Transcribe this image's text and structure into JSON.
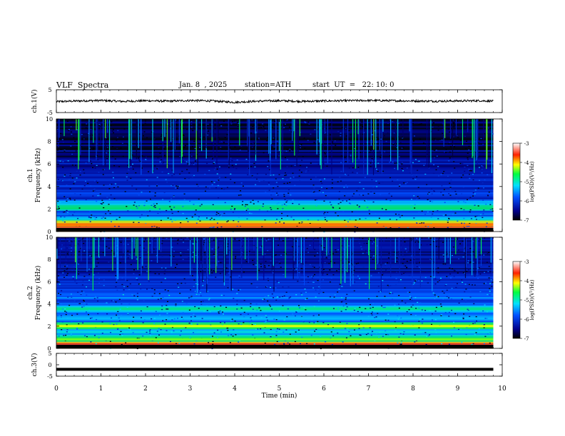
{
  "header": {
    "title": "VLF  Spectra",
    "date": "Jan. 8  , 2025",
    "station": "station=ATH",
    "start": "start  UT  =   22: 10: 0"
  },
  "chart_data": [
    {
      "type": "line",
      "panel": "ch1-waveform",
      "ylabel": "ch.1(V)",
      "ylim": [
        -5,
        5
      ],
      "xlim": [
        0,
        10
      ],
      "y_ticks": [
        "5",
        "-5"
      ],
      "description_values": {
        "mean": 0.0,
        "amplitude": 0.6
      },
      "x": [
        0,
        0.5,
        1,
        1.5,
        2,
        2.5,
        3,
        3.5,
        4,
        4.5,
        5,
        5.5,
        6,
        6.5,
        7,
        7.5,
        8,
        8.5,
        9,
        9.5,
        9.8
      ],
      "y": [
        -0.2,
        0.1,
        0.3,
        -0.1,
        0.2,
        0.0,
        0.3,
        0.1,
        -0.5,
        0.0,
        0.2,
        -0.1,
        0.1,
        0.2,
        0.3,
        0.2,
        0.1,
        0.0,
        0.1,
        0.2,
        0.0
      ]
    },
    {
      "type": "heatmap",
      "panel": "ch1-spectrogram",
      "ylabel": "ch.1\nFrequency  (kHz)",
      "ylim": [
        0,
        10
      ],
      "y_ticks": [
        "10",
        "8",
        "6",
        "4",
        "2",
        "0"
      ],
      "xlim": [
        0,
        10
      ],
      "colorbar": {
        "label": "log(PSD)(V²/Hz)",
        "ticks": [
          "-3",
          "-4",
          "-5",
          "-6",
          "-7"
        ],
        "range": [
          -7,
          -3
        ]
      },
      "bands_khz": [
        {
          "f": 0.2,
          "level": -3.4
        },
        {
          "f": 0.6,
          "level": -3.8
        },
        {
          "f": 1.0,
          "level": -5.0
        },
        {
          "f": 1.5,
          "level": -5.6
        },
        {
          "f": 2.1,
          "level": -4.6
        },
        {
          "f": 2.5,
          "level": -5.2
        },
        {
          "f": 3.3,
          "level": -5.7
        },
        {
          "f": 4.0,
          "level": -5.9
        },
        {
          "f": 5.0,
          "level": -6.1
        },
        {
          "f": 6.0,
          "level": -6.3
        },
        {
          "f": 7.0,
          "level": -6.5
        },
        {
          "f": 8.5,
          "level": -6.6
        }
      ],
      "background_level": -6.2
    },
    {
      "type": "heatmap",
      "panel": "ch2-spectrogram",
      "ylabel": "ch.2\nFrequency  (kHz)",
      "ylim": [
        0,
        10
      ],
      "y_ticks": [
        "10",
        "8",
        "6",
        "4",
        "2",
        "0"
      ],
      "xlim": [
        0,
        10
      ],
      "colorbar": {
        "label": "log(PSD)(V²/Hz)",
        "ticks": [
          "-3",
          "-4",
          "-5",
          "-6",
          "-7"
        ],
        "range": [
          -7,
          -3
        ]
      },
      "bands_khz": [
        {
          "f": 0.2,
          "level": -3.4
        },
        {
          "f": 0.8,
          "level": -4.4
        },
        {
          "f": 1.5,
          "level": -5.0
        },
        {
          "f": 2.0,
          "level": -4.2
        },
        {
          "f": 2.7,
          "level": -5.2
        },
        {
          "f": 3.5,
          "level": -4.8
        },
        {
          "f": 4.5,
          "level": -5.5
        },
        {
          "f": 5.5,
          "level": -6.0
        },
        {
          "f": 6.5,
          "level": -6.3
        },
        {
          "f": 8.0,
          "level": -6.6
        }
      ],
      "background_level": -5.9
    },
    {
      "type": "line",
      "panel": "ch3-waveform",
      "ylabel": "ch.3(V)",
      "ylim": [
        -5,
        5
      ],
      "xlim": [
        0,
        10
      ],
      "y_ticks": [
        "5",
        "0",
        "-5"
      ],
      "x": [
        0,
        9.8
      ],
      "y": [
        -2.0,
        -2.0
      ]
    }
  ],
  "xaxis": {
    "label": "Time  (min)",
    "ticks": [
      "0",
      "1",
      "2",
      "3",
      "4",
      "5",
      "6",
      "7",
      "8",
      "9",
      "10"
    ]
  }
}
